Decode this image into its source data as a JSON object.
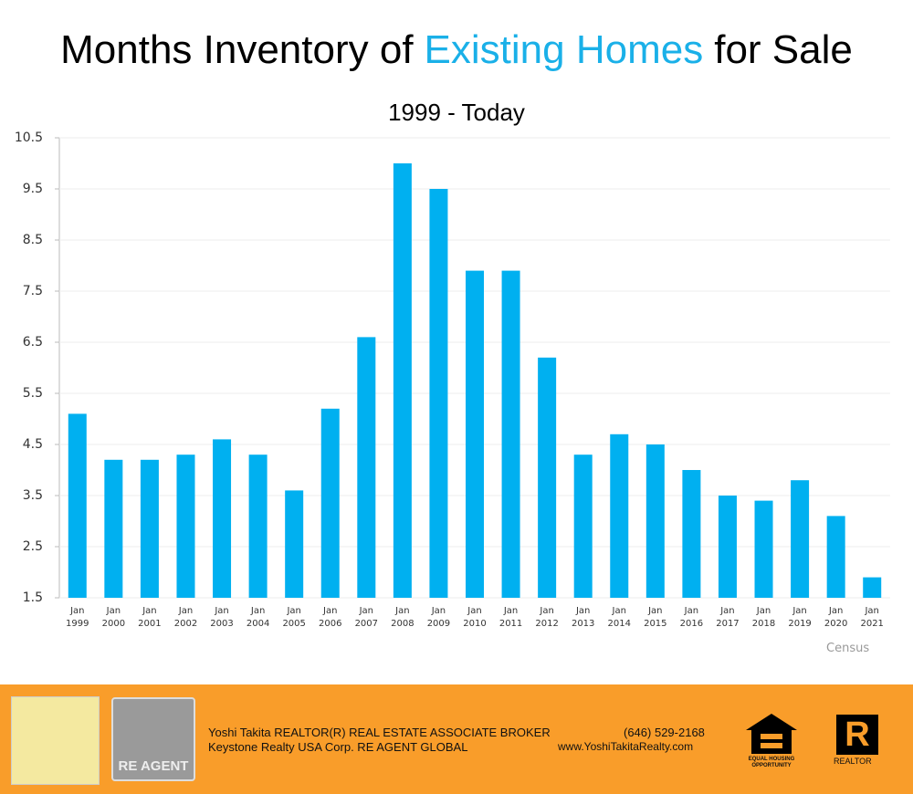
{
  "chart_data": {
    "type": "bar",
    "title_parts": [
      "Months Inventory of",
      "Existing Homes",
      "for Sale"
    ],
    "subtitle": "1999 - Today",
    "source": "Census",
    "categories": [
      "Jan 1999",
      "Jan 2000",
      "Jan 2001",
      "Jan 2002",
      "Jan 2003",
      "Jan 2004",
      "Jan 2005",
      "Jan 2006",
      "Jan 2007",
      "Jan 2008",
      "Jan 2009",
      "Jan 2010",
      "Jan 2011",
      "Jan 2012",
      "Jan 2013",
      "Jan 2014",
      "Jan 2015",
      "Jan 2016",
      "Jan 2017",
      "Jan 2018",
      "Jan 2019",
      "Jan 2020",
      "Jan 2021"
    ],
    "values": [
      5.1,
      4.2,
      4.2,
      4.3,
      4.6,
      4.3,
      3.6,
      5.2,
      6.6,
      10.0,
      9.5,
      7.9,
      7.9,
      6.2,
      4.3,
      4.7,
      4.5,
      4.0,
      3.5,
      3.4,
      3.8,
      3.1,
      1.9
    ],
    "color": "#00b0f0",
    "ylim": [
      1.5,
      10.5
    ],
    "yticks": [
      1.5,
      2.5,
      3.5,
      4.5,
      5.5,
      6.5,
      7.5,
      8.5,
      9.5,
      10.5
    ],
    "grid": true
  },
  "footer": {
    "logo_text": "RE AGENT",
    "line1": "Yoshi Takita REALTOR(R) REAL ESTATE ASSOCIATE BROKER",
    "line2": "Keystone Realty USA Corp.  RE AGENT GLOBAL",
    "phone": "(646) 529-2168",
    "website": "www.YoshiTakitaRealty.com",
    "equal_housing": "EQUAL HOUSING OPPORTUNITY",
    "realtor": "REALTOR"
  }
}
